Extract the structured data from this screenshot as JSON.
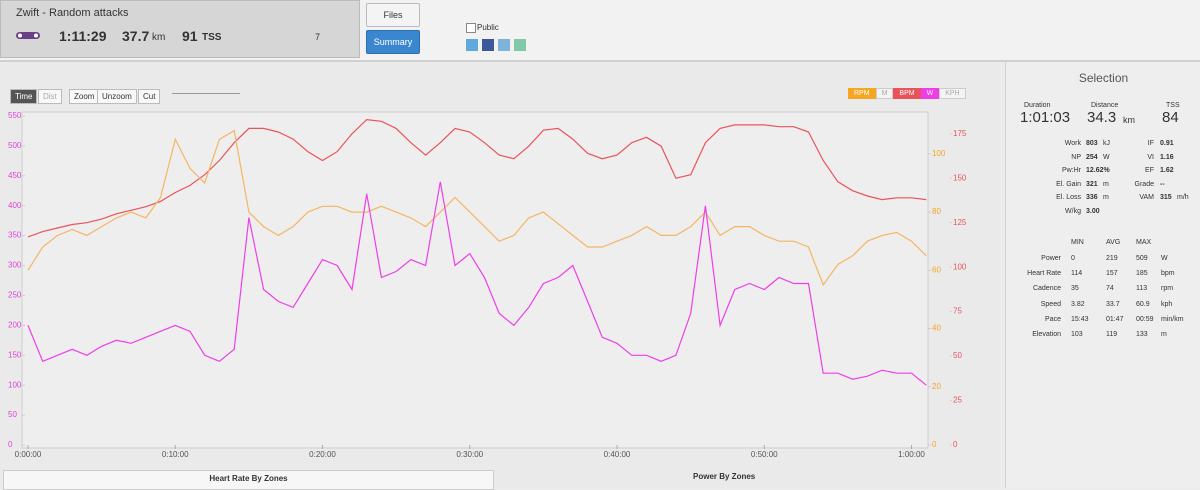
{
  "header": {
    "title": "Zwift - Random attacks",
    "duration": "1:11:29",
    "distance": "37.7",
    "distance_unit": "km",
    "tss": "91",
    "tss_unit": "TSS",
    "comments": "7"
  },
  "buttons": {
    "files": "Files",
    "summary": "Summary",
    "public": "Public"
  },
  "toolbar": {
    "time": "Time",
    "dist": "Dist",
    "zoom": "Zoom",
    "unzoom": "Unzoom",
    "cut": "Cut"
  },
  "chart_data": {
    "type": "line",
    "x": [
      0,
      1,
      2,
      3,
      4,
      5,
      6,
      7,
      8,
      9,
      10,
      11,
      12,
      13,
      14,
      15,
      16,
      17,
      18,
      19,
      20,
      21,
      22,
      23,
      24,
      25,
      26,
      27,
      28,
      29,
      30,
      31,
      32,
      33,
      34,
      35,
      36,
      37,
      38,
      39,
      40,
      41,
      42,
      43,
      44,
      45,
      46,
      47,
      48,
      49,
      50,
      51,
      52,
      53,
      54,
      55,
      56,
      57,
      58,
      59,
      60,
      61
    ],
    "xlim": [
      0,
      61.05
    ],
    "xticks": [
      {
        "value": 0,
        "label": "0:00:00"
      },
      {
        "value": 10,
        "label": "0:10:00"
      },
      {
        "value": 20,
        "label": "0:20:00"
      },
      {
        "value": 30,
        "label": "0:30:00"
      },
      {
        "value": 40,
        "label": "0:40:00"
      },
      {
        "value": 50,
        "label": "0:50:00"
      },
      {
        "value": 60,
        "label": "1:00:00"
      }
    ],
    "ylim": [
      0,
      550
    ],
    "yticks": [
      0,
      50,
      100,
      150,
      200,
      250,
      300,
      350,
      400,
      450,
      500,
      550
    ],
    "y2lim": [
      0,
      185
    ],
    "y2ticks": [
      0,
      25,
      50,
      75,
      100,
      125,
      150,
      175
    ],
    "y3lim": [
      0,
      113
    ],
    "y3ticks": [
      0,
      20,
      40,
      60,
      80,
      100
    ],
    "grid": false,
    "series": [
      {
        "name": "W",
        "color": "#ee3ee8",
        "axis": "y",
        "values": [
          200,
          140,
          150,
          160,
          150,
          165,
          175,
          170,
          180,
          190,
          200,
          190,
          150,
          140,
          160,
          380,
          260,
          240,
          230,
          270,
          310,
          300,
          260,
          420,
          280,
          290,
          310,
          300,
          440,
          300,
          320,
          280,
          220,
          200,
          230,
          270,
          280,
          300,
          240,
          180,
          170,
          150,
          150,
          140,
          150,
          220,
          400,
          200,
          260,
          270,
          260,
          280,
          270,
          270,
          120,
          120,
          110,
          115,
          125,
          120,
          120,
          100
        ]
      },
      {
        "name": "BPM",
        "color": "#e8545a",
        "axis": "y2",
        "values": [
          117,
          120,
          122,
          124,
          125,
          127,
          130,
          132,
          134,
          137,
          142,
          146,
          152,
          160,
          170,
          178,
          178,
          176,
          172,
          165,
          160,
          165,
          175,
          183,
          182,
          178,
          170,
          163,
          170,
          178,
          176,
          170,
          163,
          161,
          168,
          177,
          178,
          172,
          164,
          161,
          163,
          170,
          173,
          168,
          150,
          152,
          170,
          178,
          180,
          180,
          180,
          179,
          179,
          176,
          160,
          148,
          143,
          140,
          138,
          139,
          139,
          138
        ]
      },
      {
        "name": "RPM",
        "color": "#f5b563",
        "axis": "y3",
        "values": [
          60,
          68,
          72,
          74,
          72,
          75,
          78,
          80,
          78,
          85,
          105,
          95,
          90,
          105,
          108,
          80,
          75,
          72,
          75,
          80,
          82,
          82,
          80,
          80,
          82,
          80,
          78,
          75,
          80,
          85,
          80,
          75,
          70,
          72,
          78,
          80,
          76,
          72,
          68,
          68,
          70,
          72,
          75,
          72,
          72,
          75,
          80,
          72,
          75,
          75,
          72,
          70,
          70,
          68,
          55,
          62,
          65,
          70,
          72,
          73,
          70,
          65
        ]
      }
    ],
    "toggles": [
      {
        "name": "RPM",
        "color": "#f5a623",
        "on": true
      },
      {
        "name": "M",
        "color": "#cfcfcf",
        "on": false
      },
      {
        "name": "BPM",
        "color": "#e8545a",
        "on": true
      },
      {
        "name": "W",
        "color": "#ee3ee8",
        "on": true
      },
      {
        "name": "KPH",
        "color": "#cfcfcf",
        "on": false
      }
    ]
  },
  "selection": {
    "title": "Selection",
    "summary": [
      {
        "label": "Duration",
        "value": "1:01:03"
      },
      {
        "label": "Distance",
        "value": "34.3",
        "unit": "km"
      },
      {
        "label": "TSS",
        "value": "84"
      }
    ],
    "left": [
      {
        "label": "Work",
        "value": "803",
        "unit": "kJ"
      },
      {
        "label": "NP",
        "value": "254",
        "unit": "W"
      },
      {
        "label": "Pw:Hr",
        "value": "12.62%"
      },
      {
        "label": "El. Gain",
        "value": "321",
        "unit": "m"
      },
      {
        "label": "El. Loss",
        "value": "336",
        "unit": "m"
      },
      {
        "label": "W/kg",
        "value": "3.00"
      }
    ],
    "right": [
      {
        "label": "IF",
        "value": "0.91"
      },
      {
        "label": "VI",
        "value": "1.16"
      },
      {
        "label": "EF",
        "value": "1.62"
      },
      {
        "label": "Grade",
        "value": "--"
      },
      {
        "label": "VAM",
        "value": "315",
        "unit": "m/h"
      }
    ],
    "table": {
      "columns": [
        "MIN",
        "AVG",
        "MAX"
      ],
      "rows": [
        [
          "Power",
          "0",
          "219",
          "509",
          "W"
        ],
        [
          "Heart Rate",
          "114",
          "157",
          "185",
          "bpm"
        ],
        [
          "Cadence",
          "35",
          "74",
          "113",
          "rpm"
        ],
        [
          "Speed",
          "3.82",
          "33.7",
          "60.9",
          "kph"
        ],
        [
          "Pace",
          "15:43",
          "01:47",
          "00:59",
          "min/km"
        ],
        [
          "Elevation",
          "103",
          "119",
          "133",
          "m"
        ]
      ]
    }
  },
  "bottom": {
    "left": "Heart Rate By Zones",
    "right": "Power By Zones"
  }
}
